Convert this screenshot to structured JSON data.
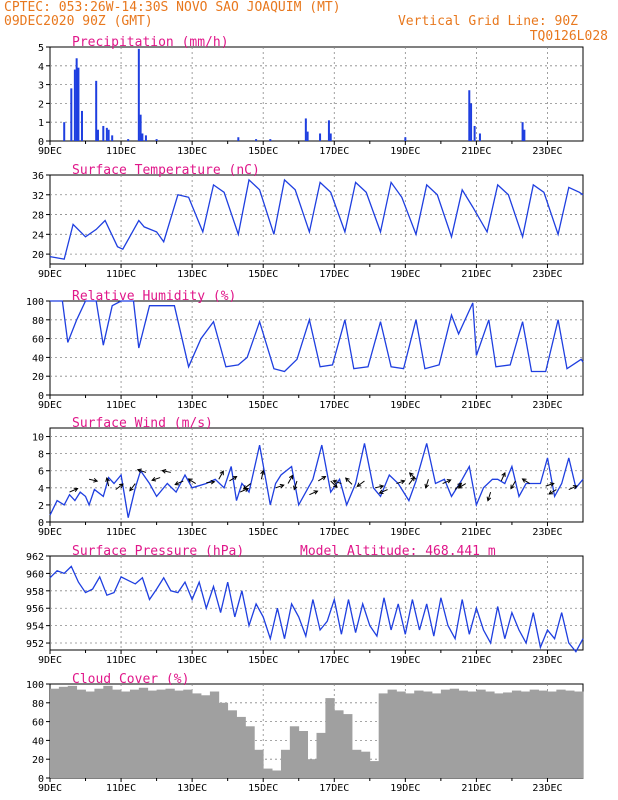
{
  "header": {
    "line1": "CPTEC:  053:26W-14:30S  NOVO SAO JOAQUIM (MT)",
    "line2": "09DEC2020 90Z (GMT)",
    "grid_note": "Vertical Grid Line: 90Z",
    "code": "TQ0126L028"
  },
  "colors": {
    "header": "#e8781e",
    "title": "#e0178a",
    "line": "#1f3fe0",
    "cloud": "#a0a0a0",
    "arrow": "#000000"
  },
  "x_ticks": [
    "9DEC",
    "11DEC",
    "13DEC",
    "15DEC",
    "17DEC",
    "19DEC",
    "21DEC",
    "23DEC"
  ],
  "x_range_days": [
    9,
    24
  ],
  "chart_data": [
    {
      "id": "precip",
      "type": "bar",
      "title": "Precipitation (mm/h)",
      "ylim": [
        0,
        5
      ],
      "yticks": [
        0,
        1,
        2,
        3,
        4,
        5
      ],
      "x": [
        9.4,
        9.6,
        9.7,
        9.75,
        9.8,
        9.9,
        10.3,
        10.35,
        10.5,
        10.6,
        10.65,
        10.75,
        11.2,
        11.5,
        11.55,
        11.6,
        11.7,
        12.0,
        14.3,
        14.8,
        15.2,
        16.2,
        16.25,
        16.6,
        16.85,
        16.9,
        19.0,
        20.8,
        20.85,
        20.95,
        21.1,
        22.3,
        22.35
      ],
      "values": [
        1.0,
        2.8,
        3.8,
        4.4,
        3.9,
        1.6,
        3.2,
        0.6,
        0.8,
        0.7,
        0.6,
        0.3,
        0.1,
        4.9,
        1.4,
        0.4,
        0.3,
        0.1,
        0.2,
        0.1,
        0.1,
        1.2,
        0.5,
        0.4,
        1.1,
        0.4,
        0.2,
        2.7,
        2.0,
        0.8,
        0.4,
        1.0,
        0.6
      ]
    },
    {
      "id": "temp",
      "type": "line",
      "title": "Surface Temperature (nC)",
      "ylim": [
        18,
        36
      ],
      "yticks": [
        20,
        24,
        28,
        32,
        36
      ],
      "x": [
        9.0,
        9.4,
        9.65,
        10.0,
        10.3,
        10.55,
        10.9,
        11.05,
        11.5,
        11.65,
        12.0,
        12.2,
        12.6,
        12.9,
        13.3,
        13.6,
        13.9,
        14.3,
        14.6,
        14.9,
        15.3,
        15.6,
        15.9,
        16.3,
        16.6,
        16.9,
        17.3,
        17.6,
        17.9,
        18.3,
        18.6,
        18.9,
        19.3,
        19.6,
        19.9,
        20.3,
        20.6,
        20.9,
        21.3,
        21.6,
        21.9,
        22.3,
        22.6,
        22.9,
        23.3,
        23.6,
        23.9,
        24.0
      ],
      "values": [
        19.5,
        19.0,
        26.0,
        23.5,
        25.0,
        26.8,
        21.5,
        21.0,
        26.8,
        25.5,
        24.5,
        22.5,
        32.0,
        31.5,
        24.5,
        34.0,
        32.5,
        24.0,
        35.0,
        33.0,
        24.0,
        35.0,
        33.0,
        24.5,
        34.5,
        32.5,
        24.5,
        34.5,
        32.5,
        24.5,
        34.5,
        31.5,
        24.0,
        34.0,
        32.0,
        23.5,
        33.0,
        29.5,
        24.5,
        34.0,
        32.0,
        23.5,
        34.0,
        32.5,
        24.0,
        33.5,
        32.5,
        32.0
      ]
    },
    {
      "id": "rh",
      "type": "line",
      "title": "Relative Humidity (%)",
      "ylim": [
        0,
        100
      ],
      "yticks": [
        0,
        20,
        40,
        60,
        80,
        100
      ],
      "x": [
        9.0,
        9.35,
        9.5,
        9.75,
        10.0,
        10.3,
        10.5,
        10.75,
        11.0,
        11.35,
        11.5,
        11.8,
        12.0,
        12.25,
        12.5,
        12.9,
        13.25,
        13.6,
        13.95,
        14.3,
        14.55,
        14.9,
        15.3,
        15.6,
        15.95,
        16.3,
        16.6,
        16.95,
        17.3,
        17.55,
        17.95,
        18.3,
        18.6,
        18.95,
        19.3,
        19.55,
        19.95,
        20.3,
        20.5,
        20.9,
        21.0,
        21.35,
        21.55,
        21.95,
        22.3,
        22.55,
        22.95,
        23.3,
        23.55,
        23.95,
        24.0
      ],
      "values": [
        100,
        100,
        56,
        80,
        100,
        100,
        53,
        95,
        100,
        100,
        50,
        95,
        95,
        95,
        95,
        30,
        60,
        78,
        30,
        32,
        40,
        78,
        28,
        25,
        38,
        80,
        30,
        32,
        80,
        28,
        30,
        78,
        30,
        28,
        80,
        28,
        32,
        85,
        65,
        98,
        42,
        80,
        30,
        32,
        78,
        25,
        25,
        80,
        28,
        38,
        35
      ]
    },
    {
      "id": "wind",
      "type": "line",
      "title": "Surface Wind (m/s)",
      "ylim": [
        0,
        11
      ],
      "yticks": [
        0,
        2,
        4,
        6,
        8,
        10
      ],
      "x": [
        9.0,
        9.2,
        9.4,
        9.55,
        9.7,
        9.85,
        10.0,
        10.1,
        10.25,
        10.5,
        10.65,
        10.8,
        11.0,
        11.2,
        11.4,
        11.55,
        11.8,
        12.0,
        12.3,
        12.55,
        12.8,
        13.0,
        13.4,
        13.65,
        13.9,
        14.1,
        14.25,
        14.4,
        14.6,
        14.9,
        15.2,
        15.35,
        15.5,
        15.8,
        16.0,
        16.2,
        16.4,
        16.65,
        16.9,
        17.15,
        17.35,
        17.6,
        17.85,
        18.1,
        18.3,
        18.55,
        18.8,
        19.1,
        19.3,
        19.6,
        19.85,
        20.1,
        20.3,
        20.6,
        20.8,
        21.0,
        21.2,
        21.45,
        21.6,
        21.8,
        22.0,
        22.2,
        22.4,
        22.6,
        22.8,
        23.0,
        23.2,
        23.4,
        23.6,
        23.8,
        24.0
      ],
      "values": [
        0.8,
        2.5,
        2.0,
        3.2,
        2.5,
        3.5,
        3.0,
        2.0,
        3.8,
        3.0,
        5.2,
        4.5,
        5.5,
        0.5,
        4.0,
        6.0,
        4.5,
        3.0,
        4.5,
        3.5,
        5.5,
        4.0,
        4.5,
        5.0,
        4.0,
        6.5,
        2.5,
        4.5,
        3.5,
        9.0,
        2.0,
        4.5,
        5.5,
        6.5,
        2.0,
        3.5,
        5.0,
        9.0,
        3.5,
        5.0,
        2.0,
        4.5,
        9.2,
        4.0,
        3.0,
        5.5,
        4.5,
        2.5,
        4.8,
        9.2,
        4.5,
        5.0,
        3.0,
        5.0,
        6.5,
        2.0,
        4.0,
        5.0,
        5.0,
        4.5,
        6.5,
        3.0,
        4.5,
        4.5,
        4.5,
        7.5,
        3.0,
        4.5,
        7.5,
        4.0,
        5.0
      ],
      "arrows": [
        {
          "x": 9.55,
          "speed": 3.5,
          "u": 0.9,
          "v": 0.4
        },
        {
          "x": 10.1,
          "speed": 5.0,
          "u": 0.9,
          "v": -0.2
        },
        {
          "x": 10.65,
          "speed": 4.2,
          "u": -0.2,
          "v": 0.9
        },
        {
          "x": 10.85,
          "speed": 3.8,
          "u": 0.8,
          "v": 0.6
        },
        {
          "x": 11.4,
          "speed": 4.5,
          "u": -0.6,
          "v": -0.8
        },
        {
          "x": 11.7,
          "speed": 5.8,
          "u": -0.9,
          "v": 0.3
        },
        {
          "x": 12.1,
          "speed": 5.2,
          "u": -0.9,
          "v": -0.3
        },
        {
          "x": 12.4,
          "speed": 5.8,
          "u": -0.95,
          "v": 0.2
        },
        {
          "x": 12.75,
          "speed": 4.8,
          "u": -0.9,
          "v": -0.4
        },
        {
          "x": 13.1,
          "speed": 4.5,
          "u": -0.8,
          "v": 0.5
        },
        {
          "x": 13.4,
          "speed": 4.6,
          "u": 0.9,
          "v": 0.1
        },
        {
          "x": 13.75,
          "speed": 5.0,
          "u": 0.5,
          "v": 0.9
        },
        {
          "x": 14.05,
          "speed": 4.8,
          "u": 0.8,
          "v": 0.5
        },
        {
          "x": 14.35,
          "speed": 3.5,
          "u": 0.9,
          "v": 0.4
        },
        {
          "x": 14.65,
          "speed": 4.5,
          "u": -0.8,
          "v": -0.6
        },
        {
          "x": 14.95,
          "speed": 5.0,
          "u": 0.2,
          "v": 0.95
        },
        {
          "x": 15.35,
          "speed": 4.0,
          "u": 0.9,
          "v": 0.3
        },
        {
          "x": 15.7,
          "speed": 4.5,
          "u": 0.5,
          "v": 0.9
        },
        {
          "x": 15.95,
          "speed": 4.8,
          "u": -0.3,
          "v": -0.95
        },
        {
          "x": 16.3,
          "speed": 3.2,
          "u": 0.9,
          "v": 0.4
        },
        {
          "x": 16.55,
          "speed": 4.8,
          "u": 0.8,
          "v": 0.5
        },
        {
          "x": 16.9,
          "speed": 4.8,
          "u": 0.7,
          "v": -0.7
        },
        {
          "x": 17.2,
          "speed": 4.5,
          "u": -0.9,
          "v": 0.3
        },
        {
          "x": 17.5,
          "speed": 4.4,
          "u": -0.7,
          "v": 0.7
        },
        {
          "x": 17.85,
          "speed": 4.8,
          "u": -0.8,
          "v": -0.6
        },
        {
          "x": 18.15,
          "speed": 4.0,
          "u": 0.9,
          "v": 0.2
        },
        {
          "x": 18.5,
          "speed": 3.8,
          "u": -0.9,
          "v": -0.4
        },
        {
          "x": 18.75,
          "speed": 4.5,
          "u": 0.9,
          "v": 0.3
        },
        {
          "x": 19.1,
          "speed": 4.4,
          "u": 0.6,
          "v": 0.8
        },
        {
          "x": 19.3,
          "speed": 5.0,
          "u": -0.7,
          "v": 0.7
        },
        {
          "x": 19.65,
          "speed": 5.0,
          "u": -0.3,
          "v": -0.95
        },
        {
          "x": 20.05,
          "speed": 4.5,
          "u": 0.9,
          "v": 0.4
        },
        {
          "x": 20.4,
          "speed": 3.8,
          "u": 0.7,
          "v": 0.7
        },
        {
          "x": 20.7,
          "speed": 4.5,
          "u": -0.8,
          "v": -0.5
        },
        {
          "x": 21.4,
          "speed": 3.5,
          "u": -0.3,
          "v": -0.95
        },
        {
          "x": 21.7,
          "speed": 4.8,
          "u": 0.4,
          "v": 0.9
        },
        {
          "x": 22.1,
          "speed": 4.8,
          "u": -0.5,
          "v": -0.85
        },
        {
          "x": 22.5,
          "speed": 4.5,
          "u": -0.8,
          "v": 0.5
        },
        {
          "x": 22.95,
          "speed": 4.2,
          "u": 0.9,
          "v": 0.3
        },
        {
          "x": 23.25,
          "speed": 3.8,
          "u": -0.8,
          "v": -0.5
        },
        {
          "x": 23.6,
          "speed": 3.8,
          "u": 0.9,
          "v": 0.4
        }
      ]
    },
    {
      "id": "pres",
      "type": "line",
      "title": "Surface Pressure (hPa)",
      "subtitle": "Model Altitude: 468.441 m",
      "ylim": [
        951.2,
        962
      ],
      "yticks": [
        952,
        954,
        956,
        958,
        960,
        962
      ],
      "x": [
        9.0,
        9.2,
        9.4,
        9.6,
        9.8,
        10.0,
        10.2,
        10.4,
        10.6,
        10.8,
        11.0,
        11.2,
        11.4,
        11.6,
        11.8,
        12.0,
        12.2,
        12.4,
        12.6,
        12.8,
        13.0,
        13.2,
        13.4,
        13.6,
        13.8,
        14.0,
        14.2,
        14.4,
        14.6,
        14.8,
        15.0,
        15.2,
        15.4,
        15.6,
        15.8,
        16.0,
        16.2,
        16.4,
        16.6,
        16.8,
        17.0,
        17.2,
        17.4,
        17.6,
        17.8,
        18.0,
        18.2,
        18.4,
        18.6,
        18.8,
        19.0,
        19.2,
        19.4,
        19.6,
        19.8,
        20.0,
        20.2,
        20.4,
        20.6,
        20.8,
        21.0,
        21.2,
        21.4,
        21.6,
        21.8,
        22.0,
        22.2,
        22.4,
        22.6,
        22.8,
        23.0,
        23.2,
        23.4,
        23.6,
        23.8,
        24.0
      ],
      "values": [
        959.5,
        960.3,
        960.0,
        960.8,
        959.0,
        957.8,
        958.2,
        959.6,
        957.5,
        957.8,
        959.6,
        959.2,
        958.8,
        959.5,
        957.0,
        958.2,
        959.5,
        958.0,
        957.8,
        959.0,
        957.0,
        959.0,
        956.0,
        958.5,
        955.5,
        959.0,
        955.0,
        958.0,
        954.0,
        956.5,
        955.0,
        952.5,
        956.0,
        952.5,
        956.5,
        955.0,
        952.8,
        957.0,
        953.5,
        954.5,
        957.0,
        953.0,
        957.0,
        953.2,
        956.5,
        954.0,
        952.8,
        957.2,
        953.5,
        956.5,
        953.0,
        957.0,
        953.5,
        956.5,
        952.8,
        957.2,
        954.0,
        952.5,
        957.0,
        953.0,
        956.0,
        953.5,
        952.0,
        956.2,
        952.5,
        955.5,
        953.5,
        952.0,
        955.5,
        951.5,
        953.5,
        952.5,
        955.5,
        952.0,
        951.0,
        952.5
      ]
    },
    {
      "id": "cloud",
      "type": "bar",
      "title": "Cloud Cover (%)",
      "ylim": [
        0,
        100
      ],
      "yticks": [
        0,
        20,
        40,
        60,
        80,
        100
      ],
      "x": [
        9.0,
        9.25,
        9.5,
        9.75,
        10.0,
        10.25,
        10.5,
        10.75,
        11.0,
        11.25,
        11.5,
        11.75,
        12.0,
        12.25,
        12.5,
        12.75,
        13.0,
        13.25,
        13.5,
        13.75,
        14.0,
        14.25,
        14.5,
        14.75,
        15.0,
        15.25,
        15.5,
        15.75,
        16.0,
        16.25,
        16.5,
        16.75,
        17.0,
        17.25,
        17.5,
        17.75,
        18.0,
        18.25,
        18.5,
        18.75,
        19.0,
        19.25,
        19.5,
        19.75,
        20.0,
        20.25,
        20.5,
        20.75,
        21.0,
        21.25,
        21.5,
        21.75,
        22.0,
        22.25,
        22.5,
        22.75,
        23.0,
        23.25,
        23.5,
        23.75
      ],
      "values": [
        95,
        97,
        98,
        94,
        92,
        95,
        98,
        94,
        92,
        94,
        96,
        93,
        94,
        95,
        93,
        94,
        90,
        88,
        92,
        80,
        72,
        65,
        55,
        30,
        10,
        8,
        30,
        55,
        50,
        20,
        48,
        85,
        72,
        68,
        30,
        28,
        18,
        90,
        94,
        92,
        90,
        93,
        92,
        90,
        94,
        95,
        93,
        92,
        94,
        92,
        90,
        91,
        93,
        92,
        94,
        93,
        92,
        94,
        93,
        92
      ]
    }
  ]
}
